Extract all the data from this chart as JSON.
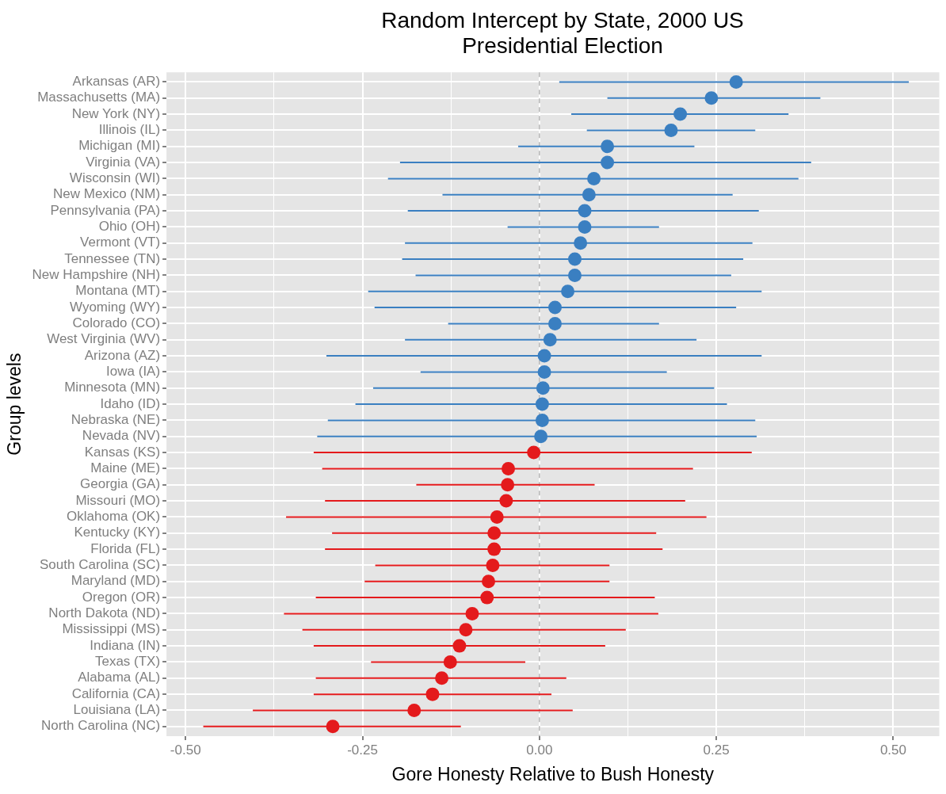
{
  "chart_data": {
    "type": "scatter",
    "orientation": "horizontal",
    "title": "Random Intercept by State, 2000 US Presidential Election",
    "xlabel": "Gore Honesty Relative to Bush Honesty",
    "ylabel": "Group levels",
    "categories": [
      "Arkansas (AR)",
      "Massachusetts (MA)",
      "New York (NY)",
      "Illinois (IL)",
      "Michigan (MI)",
      "Virginia (VA)",
      "Wisconsin (WI)",
      "New Mexico (NM)",
      "Pennsylvania (PA)",
      "Ohio (OH)",
      "Vermont (VT)",
      "Tennessee (TN)",
      "New Hampshire (NH)",
      "Montana (MT)",
      "Wyoming (WY)",
      "Colorado (CO)",
      "West Virginia (WV)",
      "Arizona (AZ)",
      "Iowa (IA)",
      "Minnesota (MN)",
      "Idaho (ID)",
      "Nebraska (NE)",
      "Nevada (NV)",
      "Kansas (KS)",
      "Maine (ME)",
      "Georgia (GA)",
      "Missouri (MO)",
      "Oklahoma (OK)",
      "Kentucky (KY)",
      "Florida (FL)",
      "South Carolina (SC)",
      "Maryland (MD)",
      "Oregon (OR)",
      "North Dakota (ND)",
      "Mississippi (MS)",
      "Indiana (IN)",
      "Texas (TX)",
      "Alabama (AL)",
      "California (CA)",
      "Louisiana (LA)",
      "North Carolina (NC)"
    ],
    "series": [
      {
        "color": "#3a7fc1",
        "values": [
          0.278,
          0.243,
          0.199,
          0.186,
          0.096,
          0.096,
          0.077,
          0.07,
          0.064,
          0.064,
          0.058,
          0.05,
          0.05,
          0.04,
          0.022,
          0.022,
          0.015,
          0.007,
          0.007,
          0.005,
          0.004,
          0.004,
          0.002,
          null,
          null,
          null,
          null,
          null,
          null,
          null,
          null,
          null,
          null,
          null,
          null,
          null,
          null,
          null,
          null,
          null,
          null
        ],
        "errors": [
          [
            0.028,
            0.522
          ],
          [
            0.096,
            0.397
          ],
          [
            0.045,
            0.352
          ],
          [
            0.067,
            0.305
          ],
          [
            -0.03,
            0.219
          ],
          [
            -0.197,
            0.384
          ],
          [
            -0.214,
            0.366
          ],
          [
            -0.137,
            0.273
          ],
          [
            -0.186,
            0.31
          ],
          [
            -0.045,
            0.169
          ],
          [
            -0.19,
            0.301
          ],
          [
            -0.194,
            0.288
          ],
          [
            -0.175,
            0.271
          ],
          [
            -0.242,
            0.314
          ],
          [
            -0.233,
            0.278
          ],
          [
            -0.129,
            0.169
          ],
          [
            -0.19,
            0.222
          ],
          [
            -0.301,
            0.314
          ],
          [
            -0.168,
            0.18
          ],
          [
            -0.235,
            0.247
          ],
          [
            -0.26,
            0.265
          ],
          [
            -0.299,
            0.305
          ],
          [
            -0.314,
            0.307
          ],
          null,
          null,
          null,
          null,
          null,
          null,
          null,
          null,
          null,
          null,
          null,
          null,
          null,
          null,
          null,
          null,
          null,
          null
        ]
      },
      {
        "color": "#e41a1c",
        "values": [
          null,
          null,
          null,
          null,
          null,
          null,
          null,
          null,
          null,
          null,
          null,
          null,
          null,
          null,
          null,
          null,
          null,
          null,
          null,
          null,
          null,
          null,
          null,
          -0.008,
          -0.044,
          -0.045,
          -0.047,
          -0.06,
          -0.064,
          -0.064,
          -0.066,
          -0.072,
          -0.074,
          -0.095,
          -0.104,
          -0.113,
          -0.126,
          -0.138,
          -0.151,
          -0.177,
          -0.292
        ],
        "errors": [
          null,
          null,
          null,
          null,
          null,
          null,
          null,
          null,
          null,
          null,
          null,
          null,
          null,
          null,
          null,
          null,
          null,
          null,
          null,
          null,
          null,
          null,
          null,
          [
            -0.319,
            0.3
          ],
          [
            -0.307,
            0.217
          ],
          [
            -0.174,
            0.078
          ],
          [
            -0.303,
            0.206
          ],
          [
            -0.358,
            0.236
          ],
          [
            -0.293,
            0.165
          ],
          [
            -0.303,
            0.174
          ],
          [
            -0.232,
            0.099
          ],
          [
            -0.247,
            0.099
          ],
          [
            -0.316,
            0.163
          ],
          [
            -0.361,
            0.168
          ],
          [
            -0.335,
            0.122
          ],
          [
            -0.319,
            0.093
          ],
          [
            -0.238,
            -0.02
          ],
          [
            -0.316,
            0.038
          ],
          [
            -0.319,
            0.017
          ],
          [
            -0.405,
            0.047
          ],
          [
            -0.475,
            -0.111
          ]
        ]
      }
    ],
    "xlim": [
      -0.527,
      0.565
    ],
    "xticks": [
      {
        "value": -0.5,
        "label": "-0.50"
      },
      {
        "value": -0.375,
        "label": null
      },
      {
        "value": -0.25,
        "label": "-0.25"
      },
      {
        "value": -0.125,
        "label": null
      },
      {
        "value": 0,
        "label": "0.00"
      },
      {
        "value": 0.125,
        "label": null
      },
      {
        "value": 0.25,
        "label": "0.25"
      },
      {
        "value": 0.375,
        "label": null
      },
      {
        "value": 0.5,
        "label": "0.50"
      }
    ],
    "ref_lines": [
      {
        "axis": "x",
        "value": 0,
        "color": "#b3b3b3",
        "line_style": "dashed"
      }
    ],
    "grid": true,
    "legend": false,
    "marker": "circle"
  }
}
